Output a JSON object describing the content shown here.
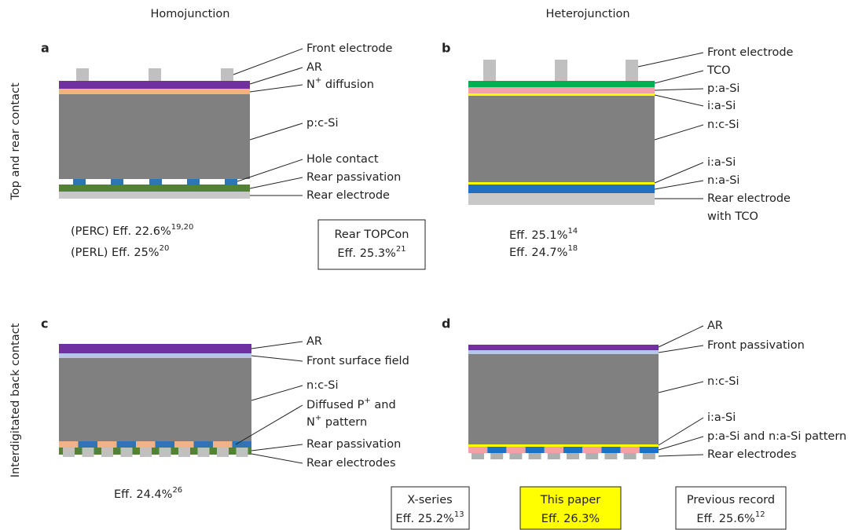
{
  "columns": [
    "Homojunction",
    "Heterojunction"
  ],
  "row_labels": [
    "Top and rear contact",
    "Interdigitated back contact"
  ],
  "panels": [
    {
      "letter": "a",
      "labels": [
        "Front electrode",
        "AR",
        {
          "text": "N",
          "sup": "+",
          "tail": " diffusion"
        },
        "p:c-Si",
        "Hole contact",
        "Rear passivation",
        "Rear electrode"
      ],
      "efficiencies": [
        {
          "text": "(PERC) Eff. 22.6%",
          "ref": "19,20"
        },
        {
          "text": "(PERL) Eff. 25%",
          "ref": "20"
        }
      ],
      "box": {
        "title": "Rear TOPCon",
        "efficiency": {
          "text": "Eff. 25.3%",
          "ref": "21"
        }
      }
    },
    {
      "letter": "b",
      "labels": [
        "Front electrode",
        "TCO",
        "p:a-Si",
        "i:a-Si",
        "n:c-Si",
        "i:a-Si",
        "n:a-Si",
        "Rear electrode",
        "with TCO"
      ],
      "efficiencies": [
        {
          "text": "Eff. 25.1%",
          "ref": "14"
        },
        {
          "text": "Eff. 24.7%",
          "ref": "18"
        }
      ]
    },
    {
      "letter": "c",
      "labels": [
        "AR",
        "Front surface field",
        "n:c-Si",
        {
          "text": "Diffused P",
          "sup": "+",
          "tail": " and"
        },
        {
          "text": "N",
          "sup": "+",
          "tail": " pattern"
        },
        "Rear passivation",
        "Rear electrodes"
      ],
      "efficiencies": [
        {
          "text": "Eff. 24.4%",
          "ref": "26"
        }
      ]
    },
    {
      "letter": "d",
      "labels": [
        "AR",
        "Front passivation",
        "n:c-Si",
        "i:a-Si",
        "p:a-Si and n:a-Si pattern",
        "Rear electrodes"
      ],
      "boxes": [
        {
          "title": "X-series",
          "efficiency": {
            "text": "Eff. 25.2%",
            "ref": "13"
          }
        },
        {
          "title": "This paper",
          "efficiency": {
            "text": "Eff. 26.3%"
          }
        },
        {
          "title": "Previous record",
          "efficiency": {
            "text": "Eff. 25.6%",
            "ref": "12"
          }
        }
      ]
    }
  ]
}
